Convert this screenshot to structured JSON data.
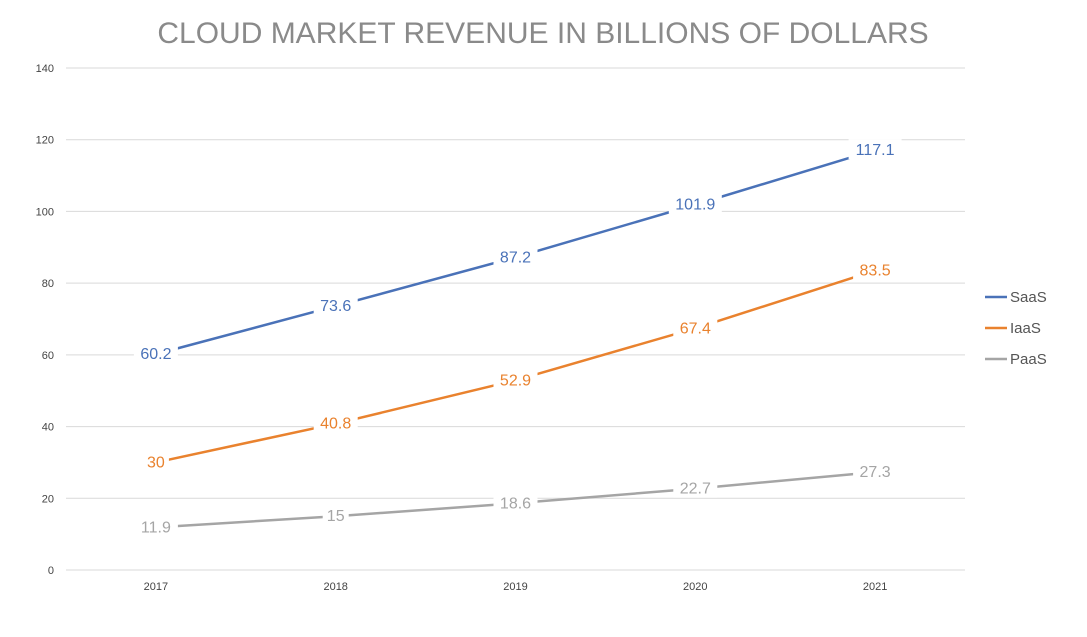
{
  "chart_data": {
    "type": "line",
    "title": "CLOUD MARKET REVENUE IN BILLIONS OF DOLLARS",
    "xlabel": "",
    "ylabel": "",
    "categories": [
      "2017",
      "2018",
      "2019",
      "2020",
      "2021"
    ],
    "ylim": [
      0,
      140
    ],
    "yticks": [
      0,
      20,
      40,
      60,
      80,
      100,
      120,
      140
    ],
    "grid": true,
    "legend_position": "right",
    "series": [
      {
        "name": "SaaS",
        "color": "#4a72b8",
        "values": [
          60.2,
          73.6,
          87.2,
          101.9,
          117.1
        ]
      },
      {
        "name": "IaaS",
        "color": "#e9822e",
        "values": [
          30,
          40.8,
          52.9,
          67.4,
          83.5
        ]
      },
      {
        "name": "PaaS",
        "color": "#a5a5a5",
        "values": [
          11.9,
          15,
          18.6,
          22.7,
          27.3
        ]
      }
    ]
  }
}
